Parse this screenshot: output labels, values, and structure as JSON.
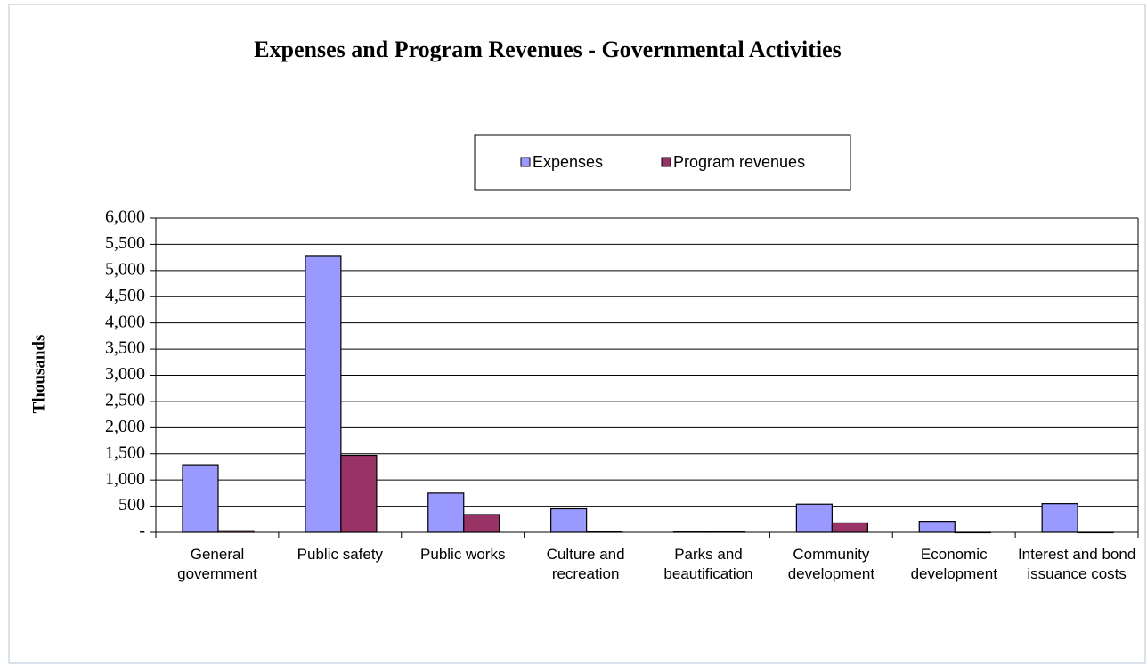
{
  "chart_data": {
    "type": "bar",
    "title": "Expenses and Program Revenues - Governmental Activities",
    "y_label": "Thousands",
    "categories": [
      "General government",
      "Public safety",
      "Public works",
      "Culture and recreation",
      "Parks and beautification",
      "Community development",
      "Economic development",
      "Interest and bond issuance costs"
    ],
    "series": [
      {
        "name": "Expenses",
        "color": "#9999ff",
        "values": [
          1290,
          5270,
          750,
          450,
          20,
          540,
          210,
          550
        ]
      },
      {
        "name": "Program revenues",
        "color": "#993366",
        "values": [
          30,
          1470,
          340,
          20,
          20,
          180,
          0,
          0
        ]
      }
    ],
    "ylim": [
      0,
      6000
    ],
    "yticks": [
      {
        "value": 0,
        "label": "-"
      },
      500,
      {
        "value": 1000,
        "label": "1,000"
      },
      {
        "value": 1500,
        "label": "1,500"
      },
      {
        "value": 2000,
        "label": "2,000"
      },
      {
        "value": 2500,
        "label": "2,500"
      },
      {
        "value": 3000,
        "label": "3,000"
      },
      {
        "value": 3500,
        "label": "3,500"
      },
      {
        "value": 4000,
        "label": "4,000"
      },
      {
        "value": 4500,
        "label": "4,500"
      },
      {
        "value": 5000,
        "label": "5,000"
      },
      {
        "value": 5500,
        "label": "5,500"
      },
      {
        "value": 6000,
        "label": "6,000"
      }
    ],
    "grid": true,
    "legend": "top"
  }
}
